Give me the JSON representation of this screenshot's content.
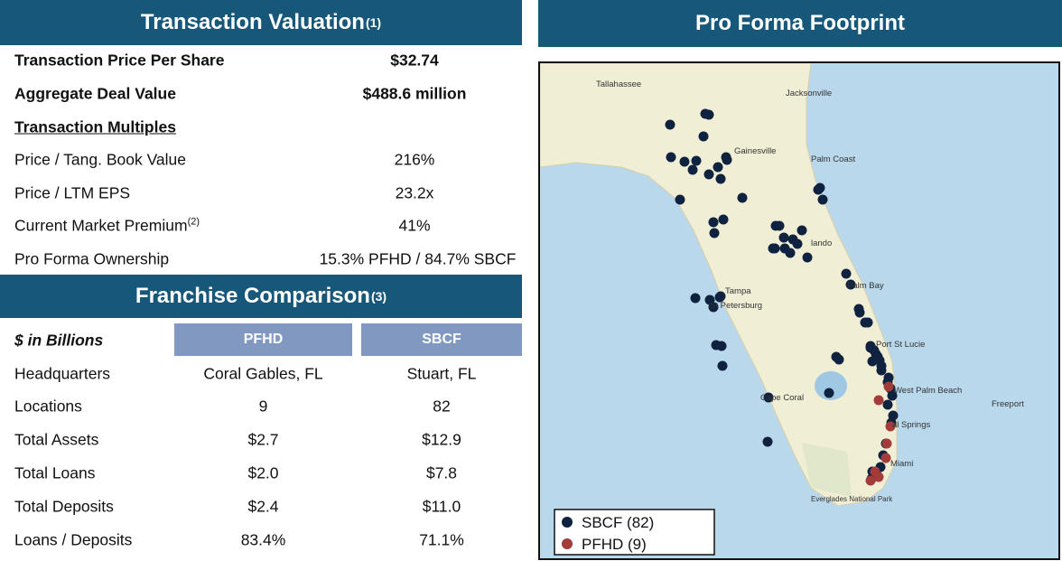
{
  "valuation": {
    "title": "Transaction Valuation",
    "title_note": "(1)",
    "rows": [
      {
        "label": "Transaction Price Per Share",
        "value": "$32.74"
      },
      {
        "label": "Aggregate Deal Value",
        "value": "$488.6 million"
      }
    ],
    "multiples_heading": "Transaction Multiples",
    "multiples": [
      {
        "label": "Price / Tang. Book Value",
        "value": "216%"
      },
      {
        "label": "Price / LTM EPS",
        "value": "23.2x"
      },
      {
        "label": "Current Market Premium",
        "note": "(2)",
        "value": "41%"
      },
      {
        "label": "Pro Forma Ownership",
        "value": "15.3% PFHD / 84.7% SBCF"
      }
    ]
  },
  "franchise": {
    "title": "Franchise Comparison",
    "title_note": "(3)",
    "unit_label": "$ in Billions",
    "columns": [
      "PFHD",
      "SBCF"
    ],
    "rows": [
      [
        "Headquarters",
        "Coral Gables, FL",
        "Stuart, FL"
      ],
      [
        "Locations",
        "9",
        "82"
      ],
      [
        "Total Assets",
        "$2.7",
        "$12.9"
      ],
      [
        "Total Loans",
        "$2.0",
        "$7.8"
      ],
      [
        "Total Deposits",
        "$2.4",
        "$11.0"
      ],
      [
        "Loans / Deposits",
        "83.4%",
        "71.1%"
      ]
    ]
  },
  "map": {
    "title": "Pro Forma Footprint",
    "labels": [
      "Tallahassee",
      "Jacksonville",
      "Gainesville",
      "Palm Coast",
      "lando",
      "Palm Bay",
      "Tampa",
      "St Petersburg",
      "Port St Lucie",
      "West Palm Beach",
      "Freeport",
      "Cape Coral",
      "al Springs",
      "Miami",
      "Everglades National Park"
    ],
    "legend": [
      "SBCF (82)",
      "PFHD (9)"
    ]
  }
}
